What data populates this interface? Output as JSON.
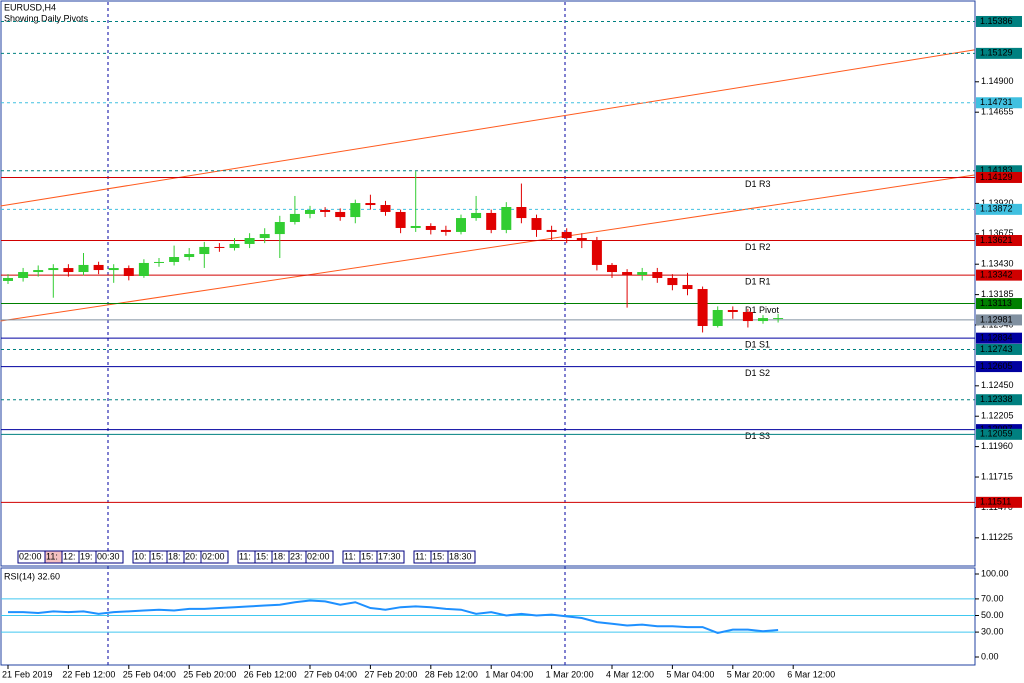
{
  "chart_data": [
    {
      "type": "candlestick",
      "title": "EURUSD,H4",
      "subtitle": "Showing Daily Pivots",
      "up_color": "#32cd32",
      "down_color": "#e00000",
      "ylim": [
        1.10998,
        1.15543
      ],
      "yticks": [
        {
          "value": 1.149,
          "label": "1.14900"
        },
        {
          "value": 1.14655,
          "label": "1.14655"
        },
        {
          "value": 1.1392,
          "label": "1.13920"
        },
        {
          "value": 1.13675,
          "label": "1.13675"
        },
        {
          "value": 1.1343,
          "label": "1.13430"
        },
        {
          "value": 1.13185,
          "label": "1.13185"
        },
        {
          "value": 1.1294,
          "label": "1.12940"
        },
        {
          "value": 1.1245,
          "label": "1.12450"
        },
        {
          "value": 1.12205,
          "label": "1.12205"
        },
        {
          "value": 1.1196,
          "label": "1.11960"
        },
        {
          "value": 1.11715,
          "label": "1.11715"
        },
        {
          "value": 1.1147,
          "label": "1.11470"
        },
        {
          "value": 1.11225,
          "label": "1.11225"
        }
      ],
      "xticks": [
        {
          "value": 1,
          "label": "21 Feb 2019"
        },
        {
          "value": 5,
          "label": "22 Feb 12:00"
        },
        {
          "value": 9,
          "label": "25 Feb 04:00"
        },
        {
          "value": 13,
          "label": "25 Feb 20:00"
        },
        {
          "value": 17,
          "label": "26 Feb 12:00"
        },
        {
          "value": 21,
          "label": "27 Feb 04:00"
        },
        {
          "value": 25,
          "label": "27 Feb 20:00"
        },
        {
          "value": 29,
          "label": "28 Feb 12:00"
        },
        {
          "value": 33,
          "label": "1 Mar 04:00"
        },
        {
          "value": 37,
          "label": "1 Mar 20:00"
        },
        {
          "value": 41,
          "label": "4 Mar 12:00"
        },
        {
          "value": 45,
          "label": "5 Mar 04:00"
        },
        {
          "value": 49,
          "label": "5 Mar 20:00"
        },
        {
          "value": 53,
          "label": "6 Mar 12:00"
        }
      ],
      "open": [
        1.13295,
        1.13319,
        1.13367,
        1.13383,
        1.13399,
        1.13367,
        1.13424,
        1.13383,
        1.13399,
        1.13335,
        1.1344,
        1.13448,
        1.13488,
        1.13512,
        1.13569,
        1.13561,
        1.13593,
        1.13641,
        1.13673,
        1.1377,
        1.13835,
        1.13867,
        1.13851,
        1.1381,
        1.13923,
        1.13907,
        1.13851,
        1.13722,
        1.13738,
        1.13706,
        1.1369,
        1.13802,
        1.13843,
        1.13706,
        1.13891,
        1.13802,
        1.13706,
        1.1369,
        1.13641,
        1.13625,
        1.13424,
        1.13367,
        1.13343,
        1.13367,
        1.13319,
        1.13262,
        1.1323,
        1.12932,
        1.13061,
        1.13045,
        1.12972,
        1.12996
      ],
      "high": [
        1.1335,
        1.134,
        1.1342,
        1.1343,
        1.1343,
        1.1352,
        1.1345,
        1.1343,
        1.1342,
        1.1347,
        1.1348,
        1.1358,
        1.1356,
        1.1361,
        1.136,
        1.1364,
        1.1368,
        1.1372,
        1.1382,
        1.1398,
        1.139,
        1.1389,
        1.1388,
        1.1395,
        1.1399,
        1.1394,
        1.1387,
        1.1418,
        1.1376,
        1.1374,
        1.1383,
        1.1398,
        1.1387,
        1.1393,
        1.1408,
        1.1383,
        1.1374,
        1.1372,
        1.1368,
        1.1365,
        1.1344,
        1.1339,
        1.134,
        1.134,
        1.1335,
        1.1336,
        1.1325,
        1.1309,
        1.1309,
        1.1307,
        1.1302,
        1.1303
      ],
      "low": [
        1.1327,
        1.1329,
        1.1333,
        1.1316,
        1.1333,
        1.1334,
        1.1335,
        1.1328,
        1.133,
        1.1332,
        1.1341,
        1.1342,
        1.1346,
        1.134,
        1.1353,
        1.1354,
        1.1356,
        1.136,
        1.1348,
        1.1375,
        1.138,
        1.1381,
        1.1378,
        1.1376,
        1.1387,
        1.1382,
        1.1368,
        1.1369,
        1.1367,
        1.1366,
        1.1367,
        1.1378,
        1.1368,
        1.1368,
        1.1376,
        1.1365,
        1.1362,
        1.136,
        1.1356,
        1.1338,
        1.1332,
        1.1308,
        1.133,
        1.1328,
        1.1322,
        1.1318,
        1.1288,
        1.1292,
        1.1299,
        1.1292,
        1.1295,
        1.1296
      ],
      "close": [
        1.13319,
        1.13367,
        1.13383,
        1.13399,
        1.13367,
        1.13424,
        1.13383,
        1.13399,
        1.13335,
        1.1344,
        1.13448,
        1.13488,
        1.13512,
        1.13569,
        1.13561,
        1.13593,
        1.13641,
        1.13673,
        1.1377,
        1.13835,
        1.13867,
        1.13851,
        1.1381,
        1.13923,
        1.13907,
        1.13851,
        1.13722,
        1.13738,
        1.13706,
        1.1369,
        1.13802,
        1.13843,
        1.13706,
        1.13891,
        1.13802,
        1.13706,
        1.1369,
        1.13641,
        1.13625,
        1.13424,
        1.13367,
        1.13343,
        1.13367,
        1.13319,
        1.13262,
        1.1323,
        1.12932,
        1.13061,
        1.13045,
        1.12972,
        1.12996,
        1.12996
      ],
      "levels": [
        {
          "value": 1.15386,
          "color": "#008080",
          "dash": true
        },
        {
          "value": 1.15129,
          "color": "#008080",
          "dash": true
        },
        {
          "value": 1.14731,
          "color": "#40c0e0",
          "dash": true
        },
        {
          "value": 1.14183,
          "color": "#008080",
          "dash": true
        },
        {
          "value": 1.14129,
          "color": "#d00000",
          "dash": false,
          "label": "D1 R3"
        },
        {
          "value": 1.13872,
          "color": "#40c0e0",
          "dash": true
        },
        {
          "value": 1.13621,
          "color": "#d00000",
          "dash": false,
          "label": "D1 R2"
        },
        {
          "value": 1.13342,
          "color": "#d00000",
          "dash": false,
          "label": "D1 R1"
        },
        {
          "value": 1.13113,
          "color": "#008000",
          "dash": false,
          "label": "D1 Pivot"
        },
        {
          "value": 1.12981,
          "color": "#8090a0",
          "dash": false
        },
        {
          "value": 1.12834,
          "color": "#0000a0",
          "dash": false,
          "label": "D1 S1"
        },
        {
          "value": 1.12743,
          "color": "#008080",
          "dash": true
        },
        {
          "value": 1.12605,
          "color": "#0000a0",
          "dash": false,
          "label": "D1 S2"
        },
        {
          "value": 1.12338,
          "color": "#008080",
          "dash": true
        },
        {
          "value": 1.12097,
          "color": "#0000a0",
          "dash": false,
          "label": "D1 S3"
        },
        {
          "value": 1.12059,
          "color": "#008080",
          "dash": false
        },
        {
          "value": 1.11511,
          "color": "#d00000",
          "dash": false
        }
      ],
      "trendlines": [
        {
          "color": "#ff5a1e",
          "x": [
            0.5,
            65
          ],
          "y": [
            1.13899,
            1.15157
          ]
        },
        {
          "color": "#ff5a1e",
          "x": [
            0.5,
            65
          ],
          "y": [
            1.12972,
            1.14149
          ]
        }
      ],
      "time_boxes": [
        "02:00",
        "11:",
        "12:",
        "19:",
        "00:30",
        "10:",
        "15:",
        "18:",
        "20:",
        "02:00",
        "11:",
        "15:",
        "18:",
        "23:",
        "02:00",
        "11:",
        "15:",
        "17:30",
        "11:",
        "15:",
        "18:30"
      ]
    },
    {
      "type": "line",
      "title": "RSI(14) 32.60",
      "color": "#1e90ff",
      "ylim": [
        0,
        100
      ],
      "yticks": [
        {
          "value": 100,
          "label": "100.00"
        },
        {
          "value": 70,
          "label": "70.00"
        },
        {
          "value": 50,
          "label": "50.00"
        },
        {
          "value": 30,
          "label": "30.00"
        },
        {
          "value": 0,
          "label": "0.00"
        }
      ],
      "levels": [
        70,
        50,
        30
      ],
      "values": [
        54,
        54,
        53,
        55,
        54,
        55,
        52,
        54,
        55,
        56,
        57,
        56,
        58,
        58,
        59,
        60,
        61,
        62,
        63,
        66,
        68,
        67,
        63,
        66,
        59,
        57,
        60,
        61,
        60,
        58,
        57,
        52,
        54,
        50,
        52,
        50,
        51,
        49,
        47,
        42,
        40,
        38,
        39,
        37,
        37,
        36,
        36,
        29,
        33,
        33,
        31,
        32.6
      ]
    }
  ]
}
